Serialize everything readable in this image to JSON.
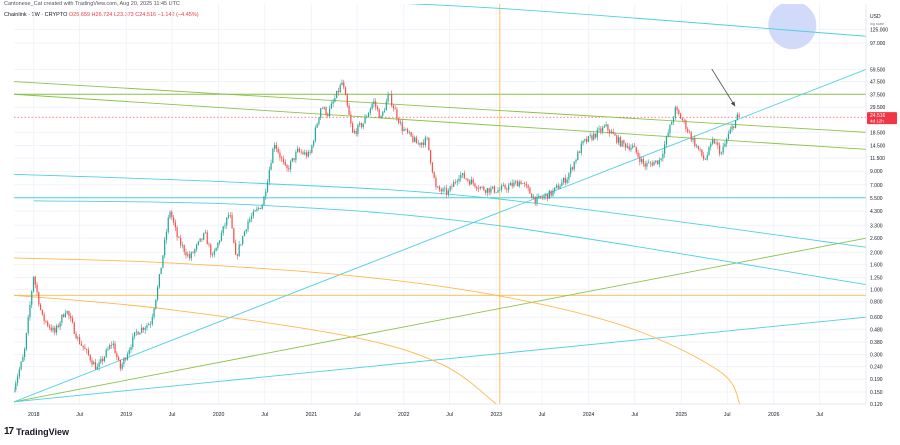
{
  "header": {
    "author_line": "Cantonese_Cat created with TradingView.com, Aug 20, 2025 11:45 UTC"
  },
  "legend": {
    "symbol": "Chainlink · 1W · CRYPTO",
    "ohlc": "O25.659 H26.724 L23.373 C24.516 −1.142 (−4.45%)"
  },
  "price_scale": {
    "currency": "USD",
    "log_label": "log scale",
    "current_price_label": "24.516",
    "countdown_label": "4d 12h"
  },
  "footer": {
    "brand": "TradingView",
    "logo": "17"
  },
  "colors": {
    "up": "#26a69a",
    "down": "#ef5350",
    "cyan_line": "#4dd0e1",
    "green_line": "#8bc34a",
    "orange_line": "#ffb74d",
    "price_tag": "#f23645",
    "highlight_circle": "#c5d1f7"
  },
  "chart_data": {
    "type": "candlestick",
    "symbol": "Chainlink",
    "interval": "1W",
    "exchange": "CRYPTO",
    "y_scale": "log",
    "ylim": [
      0.12,
      200
    ],
    "xlim": [
      "2017-10-15",
      "2026-12-31"
    ],
    "x_tick_labels": [
      "2018",
      "Jul",
      "2019",
      "Jul",
      "2020",
      "Jul",
      "2021",
      "Jul",
      "2022",
      "Jul",
      "2023",
      "Jul",
      "2024",
      "Jul",
      "2025",
      "Jul",
      "2026",
      "Jul"
    ],
    "x_ticks": [
      "2018-01-01",
      "2018-07-01",
      "2019-01-01",
      "2019-07-01",
      "2020-01-01",
      "2020-07-01",
      "2021-01-01",
      "2021-07-01",
      "2022-01-01",
      "2022-07-01",
      "2023-01-01",
      "2023-07-01",
      "2024-01-01",
      "2024-07-01",
      "2025-01-01",
      "2025-07-01",
      "2026-01-01",
      "2026-07-01"
    ],
    "y_tick_labels": [
      "USD",
      "125.000",
      "97.000",
      "59.500",
      "47.500",
      "37.500",
      "29.500",
      "18.500",
      "14.500",
      "11.500",
      "9.000",
      "7.000",
      "5.500",
      "4.300",
      "3.300",
      "2.600",
      "2.000",
      "1.600",
      "1.250",
      "1.000",
      "0.800",
      "0.600",
      "0.480",
      "0.380",
      "0.300",
      "0.240",
      "0.190",
      "0.150",
      "0.120"
    ],
    "y_ticks": [
      125,
      97,
      59.5,
      47.5,
      37.5,
      29.5,
      18.5,
      14.5,
      11.5,
      9,
      7,
      5.5,
      4.3,
      3.3,
      2.6,
      2,
      1.6,
      1.25,
      1,
      0.8,
      0.6,
      0.48,
      0.38,
      0.3,
      0.24,
      0.19,
      0.15,
      0.12
    ],
    "last": {
      "date": "2025-08-17",
      "open": 25.659,
      "high": 26.724,
      "low": 23.373,
      "close": 24.516,
      "change": -1.142,
      "change_pct": -4.45
    },
    "price_path": [
      [
        "2017-10-15",
        0.15
      ],
      [
        "2017-12-01",
        0.3
      ],
      [
        "2018-01-07",
        1.3
      ],
      [
        "2018-02-10",
        0.6
      ],
      [
        "2018-04-01",
        0.45
      ],
      [
        "2018-05-15",
        0.7
      ],
      [
        "2018-07-01",
        0.4
      ],
      [
        "2018-09-15",
        0.23
      ],
      [
        "2018-11-15",
        0.38
      ],
      [
        "2018-12-15",
        0.23
      ],
      [
        "2019-02-15",
        0.45
      ],
      [
        "2019-04-15",
        0.55
      ],
      [
        "2019-05-15",
        1.1
      ],
      [
        "2019-06-29",
        4.4
      ],
      [
        "2019-08-01",
        2.5
      ],
      [
        "2019-09-15",
        1.8
      ],
      [
        "2019-11-15",
        2.8
      ],
      [
        "2019-12-15",
        1.8
      ],
      [
        "2020-02-20",
        4.2
      ],
      [
        "2020-03-15",
        1.8
      ],
      [
        "2020-05-01",
        3.5
      ],
      [
        "2020-07-01",
        5.0
      ],
      [
        "2020-08-15",
        15.5
      ],
      [
        "2020-10-01",
        9.0
      ],
      [
        "2020-11-15",
        13.0
      ],
      [
        "2021-01-01",
        12.0
      ],
      [
        "2021-02-15",
        30.0
      ],
      [
        "2021-03-15",
        26.0
      ],
      [
        "2021-05-10",
        47.0
      ],
      [
        "2021-06-20",
        18.0
      ],
      [
        "2021-08-01",
        22.0
      ],
      [
        "2021-09-10",
        33.0
      ],
      [
        "2021-10-10",
        24.0
      ],
      [
        "2021-11-10",
        37.0
      ],
      [
        "2022-01-01",
        20.0
      ],
      [
        "2022-03-01",
        15.0
      ],
      [
        "2022-04-10",
        16.0
      ],
      [
        "2022-05-15",
        6.5
      ],
      [
        "2022-07-01",
        6.0
      ],
      [
        "2022-08-15",
        8.5
      ],
      [
        "2022-11-15",
        6.5
      ],
      [
        "2023-01-15",
        6.3
      ],
      [
        "2023-03-15",
        7.0
      ],
      [
        "2023-04-15",
        7.5
      ],
      [
        "2023-06-15",
        5.2
      ],
      [
        "2023-08-15",
        6.0
      ],
      [
        "2023-10-15",
        8.0
      ],
      [
        "2023-12-15",
        15.0
      ],
      [
        "2024-03-15",
        20.5
      ],
      [
        "2024-05-15",
        15.0
      ],
      [
        "2024-07-01",
        14.0
      ],
      [
        "2024-08-15",
        10.0
      ],
      [
        "2024-10-15",
        11.0
      ],
      [
        "2024-12-15",
        28.0
      ],
      [
        "2025-01-20",
        22.0
      ],
      [
        "2025-02-15",
        17.0
      ],
      [
        "2025-04-10",
        11.0
      ],
      [
        "2025-05-15",
        16.0
      ],
      [
        "2025-06-15",
        12.5
      ],
      [
        "2025-07-15",
        18.0
      ],
      [
        "2025-08-17",
        24.516
      ]
    ],
    "horizontal_lines": [
      {
        "price": 5.5,
        "color": "cyan"
      },
      {
        "price": 0.9,
        "color": "orange"
      },
      {
        "price": 37.5,
        "color": "green"
      },
      {
        "price": 24.516,
        "color": "red",
        "style": "dotted"
      }
    ],
    "vertical_lines": [
      {
        "date": "2023-01-15",
        "color": "orange"
      }
    ],
    "trend_lines": [
      {
        "color": "cyan",
        "from": [
          "2017-10-15",
          0.125
        ],
        "to": [
          "2026-12-31",
          59.5
        ]
      },
      {
        "color": "green",
        "from": [
          "2017-10-15",
          0.125
        ],
        "to": [
          "2026-12-31",
          2.6
        ]
      },
      {
        "color": "cyan",
        "from": [
          "2017-10-15",
          0.125
        ],
        "to": [
          "2026-12-31",
          0.6
        ]
      },
      {
        "color": "green",
        "from": [
          "2017-10-15",
          47.5
        ],
        "to": [
          "2026-12-31",
          18.5
        ]
      },
      {
        "color": "green",
        "from": [
          "2017-10-15",
          37.5
        ],
        "to": [
          "2026-12-31",
          13.5
        ]
      }
    ],
    "curves": [
      {
        "color": "cyan",
        "points": [
          [
            "2017-10-15",
            250
          ],
          [
            "2020-06-01",
            220
          ],
          [
            "2023-01-01",
            185
          ],
          [
            "2026-12-31",
            110
          ]
        ]
      },
      {
        "color": "cyan",
        "points": [
          [
            "2017-10-15",
            8.5
          ],
          [
            "2020-06-01",
            7.2
          ],
          [
            "2023-01-01",
            5.4
          ],
          [
            "2026-12-31",
            2.2
          ]
        ]
      },
      {
        "color": "cyan",
        "points": [
          [
            "2018-01-01",
            5.2
          ],
          [
            "2020-06-01",
            4.8
          ],
          [
            "2023-01-01",
            3.3
          ],
          [
            "2026-12-31",
            1.1
          ]
        ]
      },
      {
        "color": "orange",
        "points": [
          [
            "2017-10-15",
            1.8
          ],
          [
            "2019-06-01",
            1.65
          ],
          [
            "2021-06-01",
            1.3
          ],
          [
            "2023-01-01",
            0.9
          ],
          [
            "2024-06-01",
            0.5
          ],
          [
            "2025-06-01",
            0.22
          ],
          [
            "2025-08-20",
            0.12
          ]
        ]
      },
      {
        "color": "orange",
        "points": [
          [
            "2017-10-15",
            0.9
          ],
          [
            "2019-06-01",
            0.7
          ],
          [
            "2021-06-01",
            0.42
          ],
          [
            "2022-06-01",
            0.25
          ],
          [
            "2023-01-01",
            0.12
          ]
        ]
      }
    ],
    "annotations": [
      {
        "type": "arrow",
        "from": [
          "2025-05-01",
          60
        ],
        "to": [
          "2025-08-01",
          30
        ]
      },
      {
        "type": "circle",
        "center": [
          "2026-03-15",
          135
        ]
      }
    ]
  }
}
